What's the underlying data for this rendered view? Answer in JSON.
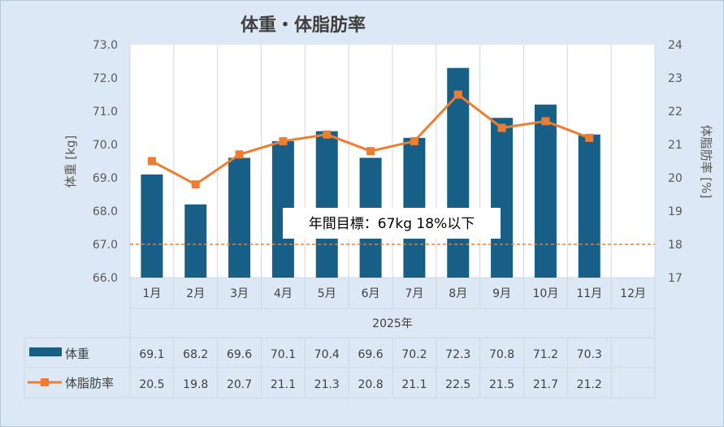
{
  "chart_data": {
    "type": "bar",
    "title": "体重・体脂肪率",
    "categories": [
      "1月",
      "2月",
      "3月",
      "4月",
      "5月",
      "6月",
      "7月",
      "8月",
      "9月",
      "10月",
      "11月",
      "12月"
    ],
    "category_group_label": "2025年",
    "series": [
      {
        "name": "体重",
        "type": "bar",
        "axis": "left",
        "values": [
          69.1,
          68.2,
          69.6,
          70.1,
          70.4,
          69.6,
          70.2,
          72.3,
          70.8,
          71.2,
          70.3,
          null
        ],
        "color": "#175f86"
      },
      {
        "name": "体脂肪率",
        "type": "line",
        "axis": "right",
        "values": [
          20.5,
          19.8,
          20.7,
          21.1,
          21.3,
          20.8,
          21.1,
          22.5,
          21.5,
          21.7,
          21.2,
          null
        ],
        "color": "#ed7d31"
      }
    ],
    "ylabel": "体重 [kg]",
    "ylim": [
      66,
      73
    ],
    "y_ticks": [
      "66.0",
      "67.0",
      "68.0",
      "69.0",
      "70.0",
      "71.0",
      "72.0",
      "73.0"
    ],
    "y2label": "体脂肪率 [%]",
    "y2lim": [
      17,
      24
    ],
    "y2_ticks": [
      "17",
      "18",
      "19",
      "20",
      "21",
      "22",
      "23",
      "24"
    ],
    "target_line": {
      "y": 67,
      "color": "#ed7d31",
      "label": "年間目標：67kg 18%以下"
    },
    "data_table": true,
    "grid": "vertical",
    "legend": "data-table",
    "colors": {
      "background": "#dce8f5",
      "plot_background": "#ffffff",
      "bar": "#175f86",
      "line": "#ed7d31"
    }
  }
}
